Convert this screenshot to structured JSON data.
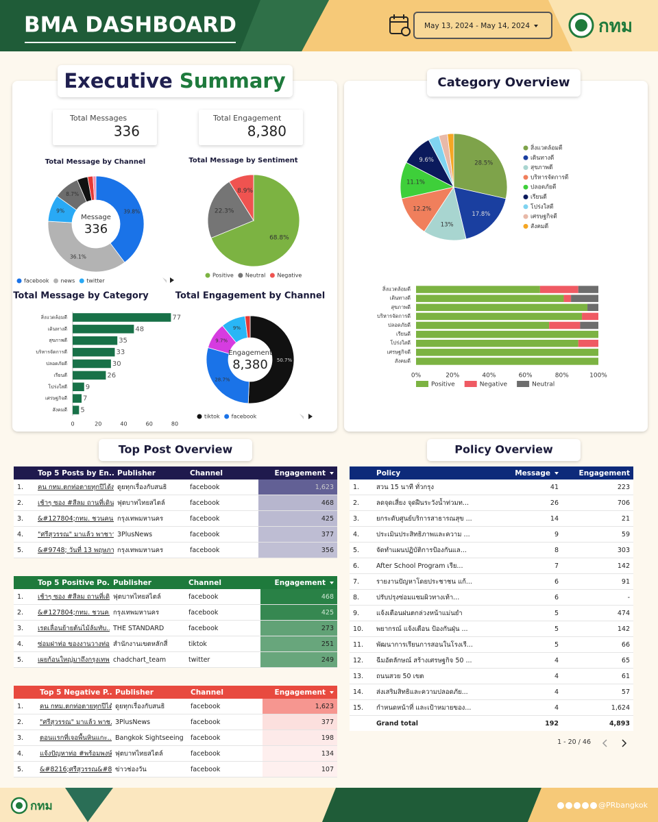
{
  "header": {
    "title": "BMA DASHBOARD",
    "date_range": "May 13, 2024 - May 14, 2024",
    "logo": "กทม"
  },
  "executive_summary": {
    "title_part1": "Executive",
    "title_part2": "Summary",
    "kpis": [
      {
        "label": "Total Messages",
        "value": 336
      },
      {
        "label": "Total Engagement",
        "value": "8,380"
      }
    ]
  },
  "sections": {
    "category_overview": "Category Overview",
    "top_post": "Top Post Overview",
    "policy": "Policy Overview"
  },
  "charts": {
    "channel": {
      "type": "donut",
      "title": "Total Message by Channel",
      "center_label": "Message",
      "center_value": 336,
      "categories": [
        "facebook",
        "news",
        "twitter",
        null,
        null,
        null,
        null
      ],
      "values": [
        39.8,
        36.1,
        9,
        8.7,
        3.6,
        1.8,
        1.0
      ],
      "value_labels": [
        "39.8%",
        "36.1%",
        "9%",
        "8.7%",
        null,
        null,
        null
      ],
      "colors": [
        "#1a73e8",
        "#b3b3b3",
        "#29a9f5",
        "#6d6d6d",
        "#111111",
        "#e53935",
        "#f48fb1"
      ]
    },
    "sentiment": {
      "type": "pie",
      "title": "Total Message by Sentiment",
      "categories": [
        "Positive",
        "Neutral",
        "Negative"
      ],
      "values": [
        68.8,
        22.3,
        8.9
      ],
      "value_labels": [
        "68.8%",
        "22.3%",
        "8.9%"
      ],
      "colors": [
        "#7cb342",
        "#757575",
        "#ef5350"
      ]
    },
    "category_bar": {
      "type": "bar",
      "title": "Total Message by Category",
      "categories": [
        "สิ่งแวดล้อมดี",
        "เดินทางดี",
        "สุขภาพดี",
        "บริหารจัดการดี",
        "ปลอดภัยดี",
        "เรียนดี",
        "โปร่งใสดี",
        "เศรษฐกิจดี",
        "สังคมดี"
      ],
      "values": [
        77,
        48,
        35,
        33,
        30,
        26,
        9,
        7,
        5
      ],
      "color": "#187148",
      "xlim": [
        0,
        80
      ],
      "xticks": [
        0,
        20,
        40,
        60,
        80
      ]
    },
    "engagement": {
      "type": "donut",
      "title": "Total Engagement by Channel",
      "center_label": "Engagement",
      "center_value": "8,380",
      "categories": [
        "tiktok",
        "facebook",
        null,
        null,
        null
      ],
      "values": [
        50.7,
        28.7,
        9.7,
        9,
        1.9
      ],
      "value_labels": [
        "50.7%",
        "28.7%",
        "9.7%",
        "9%",
        null
      ],
      "colors": [
        "#111111",
        "#1a73e8",
        "#d63ce0",
        "#29b6f6",
        "#e53935"
      ]
    },
    "category_pie": {
      "type": "pie",
      "categories": [
        "สิ่งแวดล้อมดี",
        "เดินทางดี",
        "สุขภาพดี",
        "บริหารจัดการดี",
        "ปลอดภัยดี",
        "เรียนดี",
        "โปร่งใสดี",
        "เศรษฐกิจดี",
        "สังคมดี"
      ],
      "values": [
        28.5,
        17.8,
        13,
        12.2,
        11.1,
        9.6,
        3.3,
        2.6,
        1.9
      ],
      "value_labels": [
        "28.5%",
        "17.8%",
        "13%",
        "12.2%",
        "11.1%",
        "9.6%",
        null,
        null,
        null
      ],
      "colors": [
        "#7ea34a",
        "#1a3fa0",
        "#a8d5d0",
        "#f07f5c",
        "#3ecf3a",
        "#0b1a5c",
        "#7fd3f0",
        "#e8b9a8",
        "#f5a623"
      ]
    },
    "sentiment_stack": {
      "type": "stacked_bar",
      "categories": [
        "สิ่งแวดล้อมดี",
        "เดินทางดี",
        "สุขภาพดี",
        "บริหารจัดการดี",
        "ปลอดภัยดี",
        "เรียนดี",
        "โปร่งใสดี",
        "เศรษฐกิจดี",
        "สังคมดี"
      ],
      "series": [
        {
          "name": "Positive",
          "color": "#7cb342",
          "values": [
            68,
            81,
            94,
            91,
            73,
            100,
            89,
            100,
            100
          ]
        },
        {
          "name": "Negative",
          "color": "#ef5a63",
          "values": [
            21,
            4,
            0,
            9,
            17,
            0,
            11,
            0,
            0
          ]
        },
        {
          "name": "Neutral",
          "color": "#6d6d6d",
          "values": [
            11,
            15,
            6,
            0,
            10,
            0,
            0,
            0,
            0
          ]
        }
      ],
      "xlim": [
        0,
        100
      ],
      "xticks": [
        {
          "value": 0,
          "label": "0%"
        },
        {
          "value": 20,
          "label": "20%"
        },
        {
          "value": 40,
          "label": "40%"
        },
        {
          "value": 60,
          "label": "60%"
        },
        {
          "value": 80,
          "label": "80%"
        },
        {
          "value": 100,
          "label": "100%"
        }
      ]
    }
  },
  "tables": {
    "top_posts": {
      "columns": [
        "Top 5 Posts by En...",
        "Publisher",
        "Channel",
        "Engagement"
      ],
      "sort_column": 3,
      "rows": [
        [
          "1.",
          "คน กทม.ตกท่อตายทุกปีได้ส...",
          "ดูยทุกเรื่องกับสนธิ",
          "facebook",
          "1,623"
        ],
        [
          "2.",
          "เช้าๆ ซอง #สีลม ถานที่เดินใ...",
          "ฟุตบาทไทยสไตล์",
          "facebook",
          "468"
        ],
        [
          "3.",
          "&#127804;กทม. ชวนคน...",
          "กรุงเทพมหานคร",
          "facebook",
          "425"
        ],
        [
          "4.",
          "\"ศรีสุวรรณ\" มาแล้ว พาชาว...",
          "3PlusNews",
          "facebook",
          "377"
        ],
        [
          "5.",
          "&#9748; วันที่ 13 พฤษภา...",
          "กรุงเทพมหานคร",
          "facebook",
          "356"
        ]
      ]
    },
    "positive_posts": {
      "columns": [
        "Top 5 Positive Po...",
        "Publisher",
        "Channel",
        "Engagement"
      ],
      "sort_column": 3,
      "rows": [
        [
          "1.",
          "เช้าๆ ซอง #สีลม ถานที่เดิน...",
          "ฟุตบาทไทยสไตล์",
          "facebook",
          "468"
        ],
        [
          "2.",
          "&#127804;กทม. ชวนค...",
          "กรุงเทพมหานคร",
          "facebook",
          "425"
        ],
        [
          "3.",
          "เรดเลื่อนย้ายต้นไม้ล้มทับ...",
          "THE STANDARD",
          "facebook",
          "273"
        ],
        [
          "4.",
          "ซ่อมฝาท่อ ของงานวางท่อว...",
          "สำนักงานเขตหลักสี่",
          "tiktok",
          "251"
        ],
        [
          "5.",
          "เผยก้อนใหญ่มาถึงกรุงเทพ...",
          "chadchart_team",
          "twitter",
          "249"
        ]
      ]
    },
    "negative_posts": {
      "columns": [
        "Top 5 Negative P...",
        "Publisher",
        "Channel",
        "Engagement"
      ],
      "sort_column": 3,
      "rows": [
        [
          "1.",
          "คน กทม.ตกท่อตายทุกปีได้...",
          "ดูยทุกเรื่องกับสนธิ",
          "facebook",
          "1,623"
        ],
        [
          "2.",
          "\"ศรีสุวรรณ\" มาแล้ว พาช...",
          "3PlusNews",
          "facebook",
          "377"
        ],
        [
          "3.",
          "ตอนแรกที่เจอพื้นหินแกะ...",
          "Bangkok Sightseeing",
          "facebook",
          "198"
        ],
        [
          "4.",
          "แจ้งปัญหาท่อ #พร้อมพงษ์ มี...",
          "ฟุตบาทไทยสไตล์",
          "facebook",
          "134"
        ],
        [
          "5.",
          "&#8216;ศรีสุวรรณ&#8...",
          "ข่าวช่องวัน",
          "facebook",
          "107"
        ]
      ]
    },
    "policy": {
      "columns": [
        "Policy",
        "Message",
        "Engagement"
      ],
      "sort_column": 1,
      "rows": [
        [
          "1.",
          "สวน 15 นาที ทั่วกรุง",
          "41",
          "223"
        ],
        [
          "2.",
          "ลดจุดเสี่ยง จุดฝืนระวังน้ำท่วมท...",
          "26",
          "706"
        ],
        [
          "3.",
          "ยกระดับศูนย์บริการสาธารณสุข ...",
          "14",
          "21"
        ],
        [
          "4.",
          "ประเมินประสิทธิภาพและความ ...",
          "9",
          "59"
        ],
        [
          "5.",
          "จัดทำแผนปฏิบัติการป้องกันแล...",
          "8",
          "303"
        ],
        [
          "6.",
          "After School Program เรีย...",
          "7",
          "142"
        ],
        [
          "7.",
          "รายงานปัญหาโดยประชาชน แก้...",
          "6",
          "91"
        ],
        [
          "8.",
          "ปรับปรุงซ่อมแซมผิวทางเท้า...",
          "6",
          "-"
        ],
        [
          "9.",
          "แจ้งเตือนฝนตกล่วงหน้าแม่นยำ",
          "5",
          "474"
        ],
        [
          "10.",
          "พยากรณ์ แจ้งเตือน ป้องกันฝุ่น ...",
          "5",
          "142"
        ],
        [
          "11.",
          "พัฒนาการเรียนการสอนในโรงเรี...",
          "5",
          "66"
        ],
        [
          "12.",
          "ฉีมอัตลักษณ์ สร้างเศรษฐกิจ 50 ...",
          "4",
          "65"
        ],
        [
          "13.",
          "ถนนสวย 50 เขต",
          "4",
          "61"
        ],
        [
          "14.",
          "ส่งเสริมสิทธิและความปลอดภัย...",
          "4",
          "57"
        ],
        [
          "15.",
          "กำหนดหน้าที่ และเป้าหมายของ...",
          "4",
          "1,624"
        ]
      ],
      "total": [
        "Grand total",
        "192",
        "4,893"
      ],
      "pagination": "1 - 20 / 46"
    }
  },
  "footer": {
    "logo": "กทม",
    "handle": "@PRbangkok"
  }
}
